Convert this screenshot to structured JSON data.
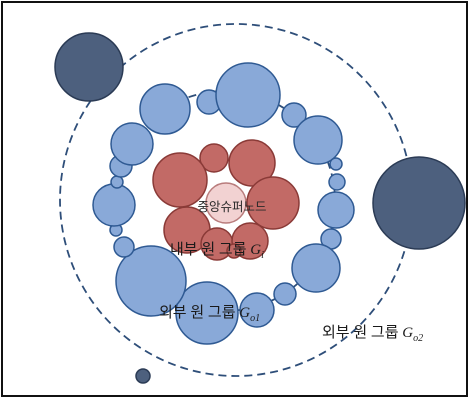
{
  "labels": {
    "center": "중앙슈퍼노드",
    "inner": {
      "prefix": "내부 원 그룹 ",
      "symbol": "G",
      "subscript": "i"
    },
    "outer1": {
      "prefix": "외부 원 그룹 ",
      "symbol": "G",
      "subscript": "o1"
    },
    "outer2": {
      "prefix": "외부 원 그룹 ",
      "symbol": "G",
      "subscript": "o2"
    }
  },
  "colors": {
    "frame": "#111111",
    "dashed_orbit": "#2e4e79",
    "blue_fill": "#89a9d8",
    "blue_stroke": "#2f5a93",
    "red_fill": "#c26a66",
    "red_stroke": "#8a3a37",
    "dark_fill": "#4d607e",
    "dark_stroke": "#2b3b55",
    "center_fill": "#f2d2d2",
    "center_stroke": "#b97c7c"
  }
}
